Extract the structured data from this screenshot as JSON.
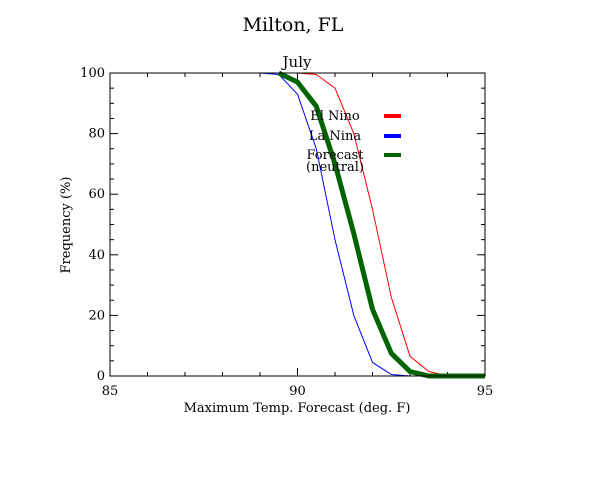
{
  "chart_data": {
    "type": "line",
    "title": "Milton, FL",
    "subtitle": "July",
    "xlabel": "Maximum Temp. Forecast (deg. F)",
    "ylabel": "Frequency (%)",
    "xlim": [
      85,
      95
    ],
    "ylim": [
      0,
      100
    ],
    "x_ticks": [
      85,
      90,
      95
    ],
    "x_tick_labels": [
      "85",
      "90",
      "95"
    ],
    "y_ticks": [
      0,
      20,
      40,
      60,
      80,
      100
    ],
    "y_tick_labels": [
      "0",
      "20",
      "40",
      "60",
      "80",
      "100"
    ],
    "grid": false,
    "legend_position": "top-right inside",
    "series": [
      {
        "name": "El Nino",
        "color": "#ff0000",
        "x": [
          90.0,
          90.5,
          91.0,
          91.5,
          92.0,
          92.5,
          93.0,
          93.5,
          94.0,
          94.5,
          95.0
        ],
        "values": [
          100,
          99.5,
          95,
          80,
          55,
          26,
          6.5,
          1.5,
          0,
          0,
          0
        ]
      },
      {
        "name": "La Nina",
        "color": "#0000ff",
        "x": [
          89.0,
          89.5,
          90.0,
          90.5,
          91.0,
          91.5,
          92.0,
          92.5,
          93.0,
          93.5,
          94.0,
          94.5,
          95.0
        ],
        "values": [
          100,
          99.5,
          93,
          75,
          45,
          20,
          4.5,
          0.5,
          0,
          0,
          0,
          0,
          0
        ]
      },
      {
        "name": "Forecast",
        "name_line2": "(neutral)",
        "color": "#006400",
        "x": [
          89.5,
          90.0,
          90.5,
          91.0,
          91.5,
          92.0,
          92.5,
          93.0,
          93.5,
          94.0,
          94.5,
          95.0
        ],
        "values": [
          100,
          97,
          89,
          70,
          47,
          22,
          7.5,
          1.5,
          0,
          0,
          0,
          0
        ]
      }
    ]
  }
}
